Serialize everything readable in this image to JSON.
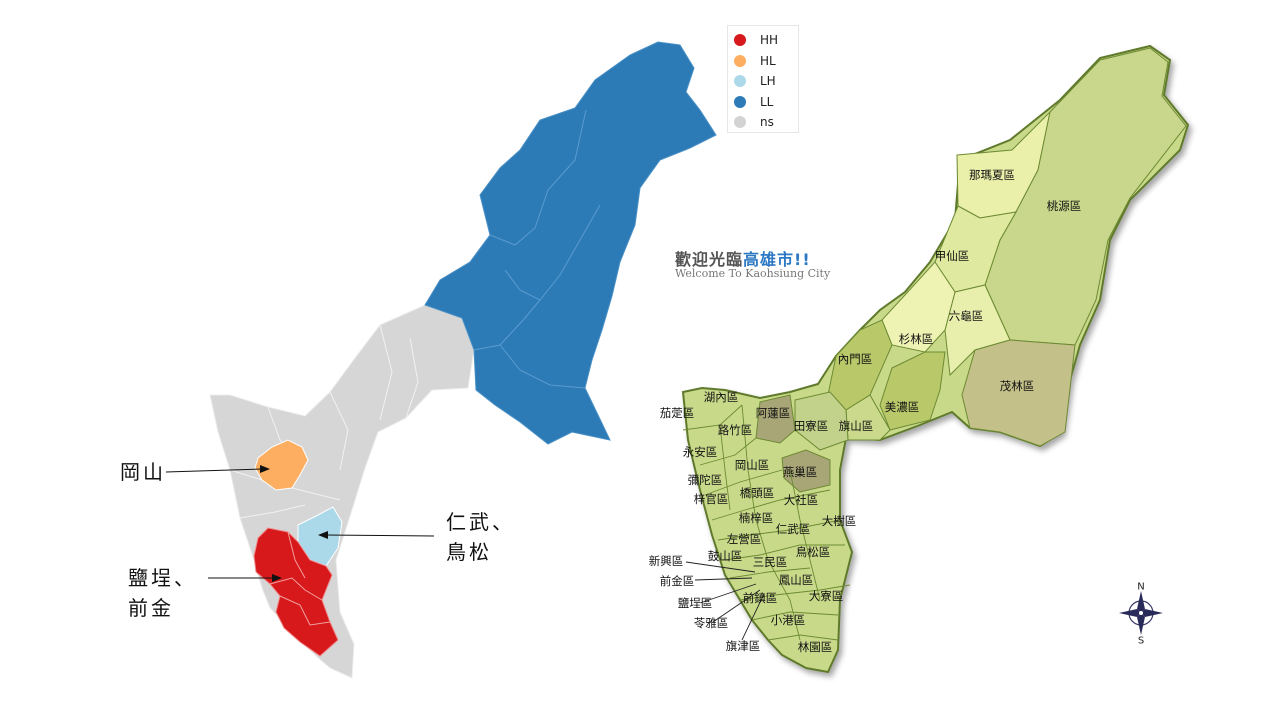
{
  "legend": {
    "items": [
      {
        "label": "HH",
        "color": "#d7191c"
      },
      {
        "label": "HL",
        "color": "#fdae61"
      },
      {
        "label": "LH",
        "color": "#abd9e9"
      },
      {
        "label": "LL",
        "color": "#2c7bb6"
      },
      {
        "label": "ns",
        "color": "#d3d3d3"
      }
    ]
  },
  "callouts": {
    "gangshan": "岡山",
    "renwu_line1": "仁武、",
    "renwu_line2": "鳥松",
    "yancheng_line1": "鹽埕、",
    "yancheng_line2": "前金"
  },
  "welcome": {
    "title_part1": "歡迎光臨",
    "title_part2": "高雄市!!",
    "subtitle": "Welcome To Kaohsiung City"
  },
  "compass": {
    "north": "N",
    "south": "S"
  },
  "districts": [
    "那瑪夏區",
    "桃源區",
    "甲仙區",
    "六龜區",
    "杉林區",
    "內門區",
    "茂林區",
    "美濃區",
    "湖內區",
    "茄萣區",
    "阿蓮區",
    "路竹區",
    "田寮區",
    "旗山區",
    "永安區",
    "岡山區",
    "燕巢區",
    "彌陀區",
    "橋頭區",
    "梓官區",
    "大社區",
    "楠梓區",
    "大樹區",
    "仁武區",
    "左營區",
    "鼓山區",
    "鳥松區",
    "新興區",
    "三民區",
    "前金區",
    "鳳山區",
    "鹽埕區",
    "前鎮區",
    "大寮區",
    "苓雅區",
    "小港區",
    "旗津區",
    "林園區"
  ]
}
